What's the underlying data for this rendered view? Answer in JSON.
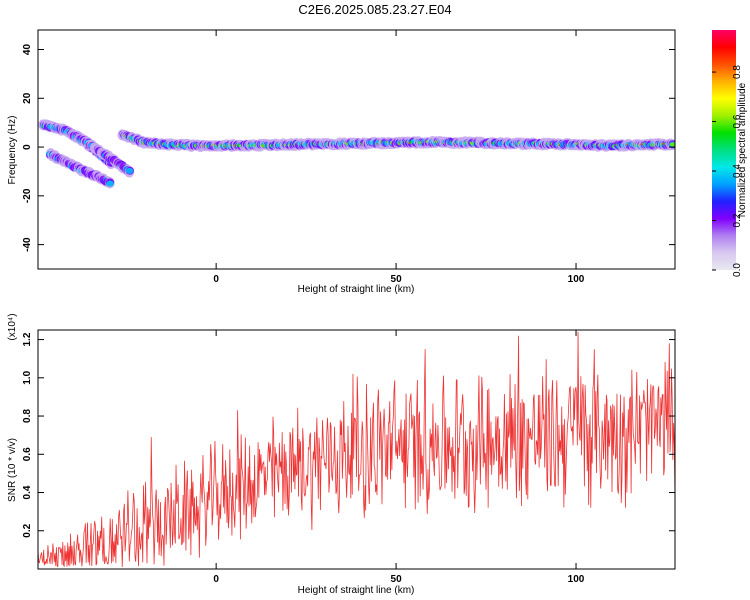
{
  "title": "C2E6.2025.085.23.27.E04",
  "chart_data": [
    {
      "type": "heatmap",
      "xlabel": "Height of straight line (km)",
      "ylabel": "Frequency (Hz)",
      "xlim": [
        -49.5,
        127.5
      ],
      "ylim": [
        -50,
        48
      ],
      "xticks": [
        0,
        50,
        100
      ],
      "yticks": [
        -40,
        -20,
        0,
        20,
        40
      ],
      "colorbar": {
        "label": "Normalized spectral amplitude",
        "range": [
          0,
          0.97
        ],
        "ticks": [
          0.0,
          0.2,
          0.4,
          0.6,
          0.8
        ],
        "colormap": [
          "#e8e8f0",
          "#d8c8f0",
          "#b080f0",
          "#8000ff",
          "#2020ff",
          "#00a0ff",
          "#00e8e8",
          "#00e080",
          "#00e000",
          "#a0f000",
          "#ffff00",
          "#ffb000",
          "#ff5000",
          "#ff0000",
          "#ff0066"
        ]
      },
      "ridges": [
        {
          "x": [
            -48,
            -42,
            -37,
            -33,
            -29
          ],
          "y": [
            9,
            7,
            3,
            -2,
            -7
          ],
          "amplitude": 0.6
        },
        {
          "x": [
            -46,
            -42,
            -38,
            -33,
            -29
          ],
          "y": [
            -3,
            -6,
            -9,
            -12,
            -15
          ],
          "amplitude": 0.5
        },
        {
          "x": [
            -40,
            -36,
            -32,
            -28,
            -24
          ],
          "y": [
            5,
            2,
            -2,
            -6,
            -10
          ],
          "amplitude": 0.45
        },
        {
          "x": [
            -26,
            -20,
            -12,
            -5,
            0,
            20,
            40,
            60,
            80,
            100,
            110,
            120,
            127
          ],
          "y": [
            5,
            2,
            1,
            0.5,
            0.5,
            1,
            1.5,
            2,
            1.5,
            1,
            0.5,
            1,
            1
          ],
          "amplitude": 0.9
        }
      ]
    },
    {
      "type": "line",
      "xlabel": "Height of straight line (km)",
      "ylabel": "SNR (10 * v/v)",
      "y_multiplier": "(x10⁴)",
      "xlim": [
        -49.5,
        127.5
      ],
      "ylim": [
        0,
        1.25
      ],
      "xticks": [
        0,
        50,
        100
      ],
      "yticks": [
        0.2,
        0.4,
        0.6,
        0.8,
        1.0,
        1.2
      ],
      "color": "#ee3333",
      "envelope": {
        "x": [
          -49.5,
          -45,
          -40,
          -35,
          -30,
          -25,
          -20,
          -15,
          -10,
          -5,
          0,
          5,
          10,
          15,
          20,
          25,
          30,
          35,
          40,
          45,
          50,
          55,
          60,
          65,
          70,
          75,
          80,
          85,
          90,
          95,
          100,
          105,
          110,
          115,
          120,
          125,
          127.5
        ],
        "baseline": [
          0.05,
          0.06,
          0.08,
          0.12,
          0.15,
          0.2,
          0.22,
          0.25,
          0.28,
          0.32,
          0.38,
          0.42,
          0.45,
          0.5,
          0.52,
          0.55,
          0.58,
          0.6,
          0.62,
          0.63,
          0.64,
          0.65,
          0.66,
          0.66,
          0.67,
          0.67,
          0.68,
          0.68,
          0.7,
          0.7,
          0.72,
          0.72,
          0.72,
          0.73,
          0.74,
          0.75,
          0.76
        ],
        "amplitude": [
          0.06,
          0.1,
          0.15,
          0.2,
          0.22,
          0.25,
          0.28,
          0.28,
          0.3,
          0.3,
          0.32,
          0.3,
          0.32,
          0.34,
          0.35,
          0.36,
          0.38,
          0.4,
          0.42,
          0.42,
          0.42,
          0.42,
          0.42,
          0.42,
          0.42,
          0.42,
          0.44,
          0.44,
          0.44,
          0.44,
          0.46,
          0.44,
          0.42,
          0.42,
          0.42,
          0.4,
          0.4
        ]
      },
      "peaks": [
        {
          "x": 84,
          "y": 1.22
        },
        {
          "x": 100.5,
          "y": 1.24
        },
        {
          "x": 126,
          "y": 1.18
        },
        {
          "x": 105,
          "y": 1.15
        },
        {
          "x": 58,
          "y": 1.15
        },
        {
          "x": 38,
          "y": 1.02
        },
        {
          "x": 6,
          "y": 0.83
        },
        {
          "x": -18,
          "y": 0.69
        }
      ]
    }
  ]
}
